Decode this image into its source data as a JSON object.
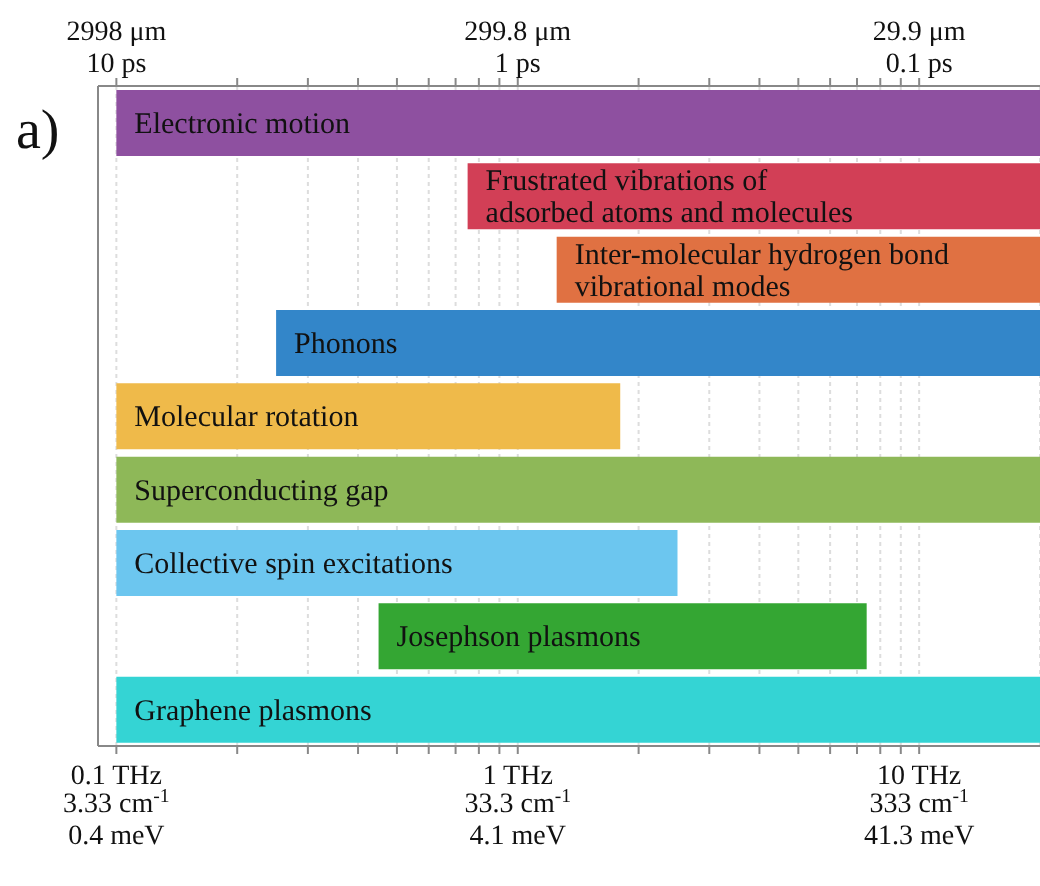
{
  "chart_data": {
    "type": "bar",
    "orientation": "horizontal",
    "log": "x",
    "grid": "x",
    "tick_labels": "x",
    "categories": [
      "Electronic motion",
      "Frustrated vibrations of\nadsorbed atoms and molecules",
      "Inter-molecular hydrogen bond\nvibrational modes",
      "Phonons",
      "Molecular rotation",
      "Superconducting gap",
      "Collective spin excitations",
      "Josephson plasmons",
      "Graphene plasmons"
    ],
    "base": [
      0.1,
      0.75,
      1.25,
      0.25,
      0.1,
      0.1,
      0.1,
      0.45,
      0.1
    ],
    "values": [
      19.9,
      19.25,
      18.75,
      19.75,
      1.7,
      19.9,
      2.4,
      6.95,
      19.9
    ],
    "colors": [
      "#8e50a0",
      "#d23f56",
      "#e07142",
      "#3386c9",
      "#efba4a",
      "#8eb858",
      "#6cc6ef",
      "#34a633",
      "#34d4d4"
    ],
    "xlim": [
      0.09,
      20
    ],
    "xticks": [
      {
        "value": 0.1,
        "label": "0.1 THz"
      },
      {
        "value": 0.2,
        "label": null
      },
      {
        "value": 0.3,
        "label": null
      },
      {
        "value": 0.4,
        "label": null
      },
      {
        "value": 0.5,
        "label": null
      },
      {
        "value": 0.6,
        "label": null
      },
      {
        "value": 0.7,
        "label": null
      },
      {
        "value": 0.8,
        "label": null
      },
      {
        "value": 0.9,
        "label": null
      },
      {
        "value": 1,
        "label": "1 THz"
      },
      {
        "value": 2,
        "label": null
      },
      {
        "value": 3,
        "label": null
      },
      {
        "value": 4,
        "label": null
      },
      {
        "value": 5,
        "label": null
      },
      {
        "value": 6,
        "label": null
      },
      {
        "value": 7,
        "label": null
      },
      {
        "value": 8,
        "label": null
      },
      {
        "value": 9,
        "label": null
      },
      {
        "value": 10,
        "label": "10 THz"
      }
    ],
    "annotations": [
      "a)",
      "2998 μm",
      "299.8 μm",
      "29.9 μm",
      "10 ps",
      "1 ps",
      "0.1 ps",
      "3.33 cm$^{-1}$",
      "33.3 cm$^{-1}$",
      "333 cm$^{-1}$",
      "0.4 meV",
      "4.1 meV",
      "41.3 meV"
    ]
  }
}
